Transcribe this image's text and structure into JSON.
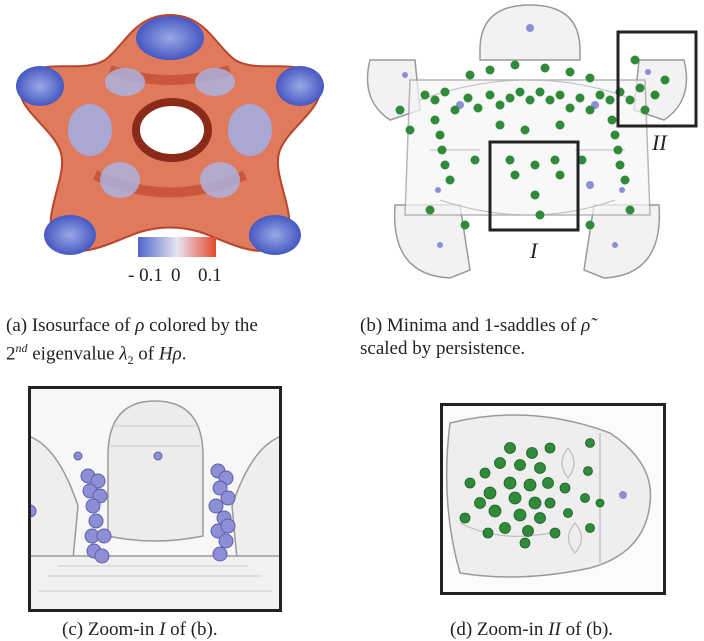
{
  "panel_a": {
    "colorbar": {
      "ticks": [
        "- 0.1",
        "0",
        "0.1"
      ],
      "colors": [
        "#4f66c9",
        "#e8e4f2",
        "#e5482c"
      ]
    }
  },
  "panel_b": {
    "label_I": "I",
    "label_II": "II"
  },
  "captions": {
    "a_line1": "(a) Isosurface of ρ colored by the",
    "a_line2": "2nd eigenvalue λ2 of Hρ.",
    "b_line1": "(b) Minima and 1-saddles of ρ̃",
    "b_line2": "scaled by persistence.",
    "c": "(c) Zoom-in I of (b).",
    "d": "(d) Zoom-in II of (b)."
  },
  "colors": {
    "minima": "#8c8fd6",
    "saddles": "#2f8a3a",
    "frame": "#222222"
  }
}
